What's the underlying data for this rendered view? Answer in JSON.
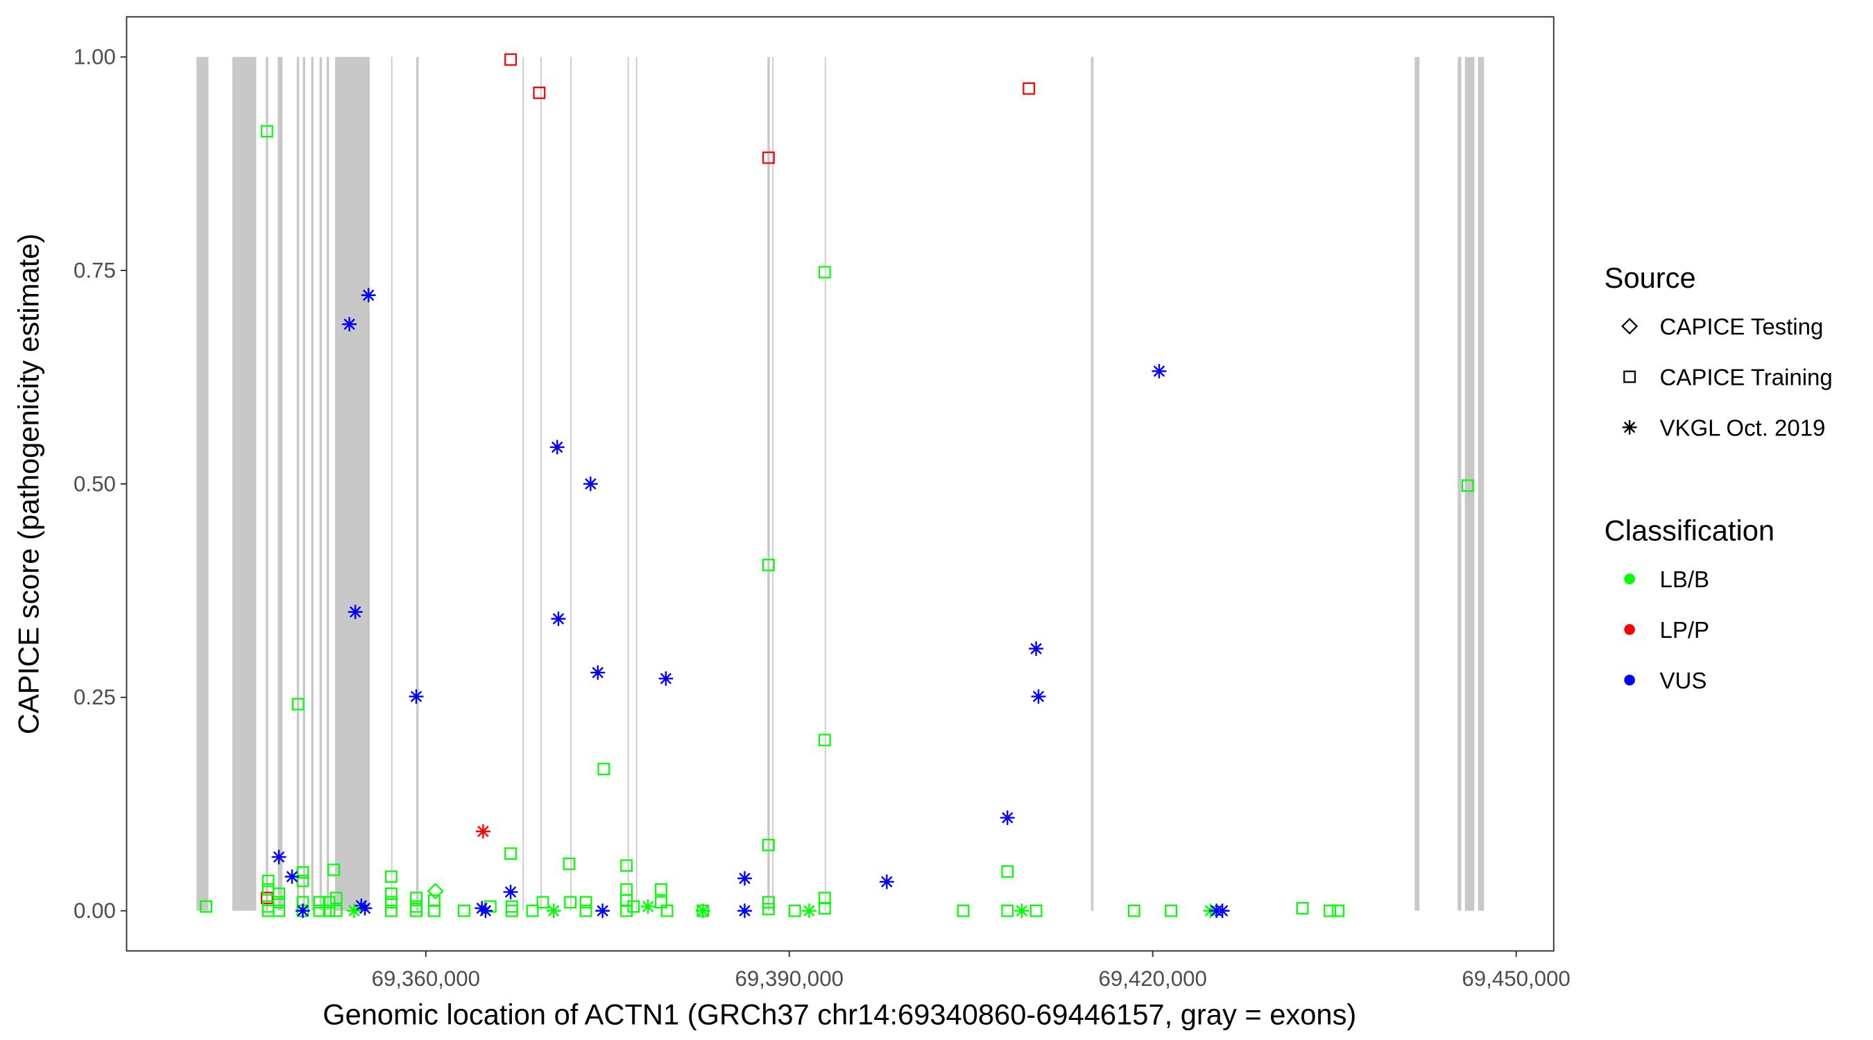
{
  "chart_data": {
    "type": "scatter",
    "title": "",
    "xlabel": "Genomic location of ACTN1 (GRCh37 chr14:69340860-69446157, gray = exons)",
    "ylabel": "CAPICE score (pathogenicity estimate)",
    "xlim": [
      69335300,
      69453100
    ],
    "ylim": [
      -0.047,
      1.047
    ],
    "x_ticks": [
      69360000,
      69390000,
      69420000,
      69450000
    ],
    "x_tick_labels": [
      "69,360,000",
      "69,390,000",
      "69,420,000",
      "69,450,000"
    ],
    "y_ticks": [
      0,
      0.25,
      0.5,
      0.75,
      1.0
    ],
    "y_tick_labels": [
      "0.00",
      "0.25",
      "0.50",
      "0.75",
      "1.00"
    ],
    "grid": false,
    "exon_color": "#c8c8c8",
    "exons": [
      [
        69341073,
        69342058
      ],
      [
        69344030,
        69346000
      ],
      [
        69346790,
        69346990
      ],
      [
        69347776,
        69348170
      ],
      [
        69349350,
        69349550
      ],
      [
        69349846,
        69350044
      ],
      [
        69350536,
        69350733
      ],
      [
        69351226,
        69351423
      ],
      [
        69351818,
        69352015
      ],
      [
        69352508,
        69355367
      ],
      [
        69357141,
        69357240
      ],
      [
        69359211,
        69359408
      ],
      [
        69367985,
        69368084
      ],
      [
        69369464,
        69369562
      ],
      [
        69371928,
        69372027
      ],
      [
        69376660,
        69376760
      ],
      [
        69377350,
        69377450
      ],
      [
        69388195,
        69388390
      ],
      [
        69388590,
        69388687
      ],
      [
        69392926,
        69393024
      ],
      [
        69414910,
        69415110
      ],
      [
        69441625,
        69442020
      ],
      [
        69445170,
        69445470
      ],
      [
        69445765,
        69446555
      ],
      [
        69446850,
        69447340
      ]
    ],
    "legend": {
      "placement": "right",
      "source_title": "Source",
      "sources": [
        {
          "key": "testing",
          "label": "CAPICE Testing",
          "shape": "diamond"
        },
        {
          "key": "training",
          "label": "CAPICE Training",
          "shape": "square"
        },
        {
          "key": "vkgl",
          "label": "VKGL Oct. 2019",
          "shape": "asterisk"
        }
      ],
      "class_title": "Classification",
      "classes": [
        {
          "key": "LB/B",
          "label": "LB/B",
          "color": "#00ff00"
        },
        {
          "key": "LP/P",
          "label": "LP/P",
          "color": "#ff0000"
        },
        {
          "key": "VUS",
          "label": "VUS",
          "color": "#0000ff"
        }
      ]
    },
    "points": [
      [
        69341861,
        0.005,
        "training",
        "LB/B"
      ],
      [
        69346889,
        0.913,
        "training",
        "LB/B"
      ],
      [
        69346889,
        0.015,
        "training",
        "LP/P"
      ],
      [
        69346990,
        0.035,
        "training",
        "LB/B"
      ],
      [
        69346990,
        0.025,
        "training",
        "LB/B"
      ],
      [
        69346990,
        0.005,
        "training",
        "LB/B"
      ],
      [
        69346990,
        0.0,
        "training",
        "LB/B"
      ],
      [
        69347875,
        0.02,
        "training",
        "LB/B"
      ],
      [
        69347875,
        0.01,
        "training",
        "LB/B"
      ],
      [
        69347875,
        0.0,
        "training",
        "LB/B"
      ],
      [
        69349452,
        0.242,
        "training",
        "LB/B"
      ],
      [
        69349846,
        0.045,
        "training",
        "LB/B"
      ],
      [
        69349846,
        0.035,
        "training",
        "LB/B"
      ],
      [
        69349846,
        0.01,
        "training",
        "LB/B"
      ],
      [
        69349846,
        0.0,
        "training",
        "LB/B"
      ],
      [
        69351226,
        0.01,
        "training",
        "LB/B"
      ],
      [
        69351226,
        0.0,
        "training",
        "LB/B"
      ],
      [
        69352015,
        0.01,
        "training",
        "LB/B"
      ],
      [
        69352015,
        0.0,
        "training",
        "LB/B"
      ],
      [
        69352409,
        0.048,
        "training",
        "LB/B"
      ],
      [
        69352606,
        0.015,
        "training",
        "LB/B"
      ],
      [
        69352606,
        0.0,
        "training",
        "LB/B"
      ],
      [
        69357141,
        0.04,
        "training",
        "LB/B"
      ],
      [
        69357141,
        0.02,
        "training",
        "LB/B"
      ],
      [
        69357141,
        0.01,
        "training",
        "LB/B"
      ],
      [
        69357141,
        0.0,
        "training",
        "LB/B"
      ],
      [
        69359211,
        0.015,
        "training",
        "LB/B"
      ],
      [
        69359211,
        0.005,
        "training",
        "LB/B"
      ],
      [
        69359211,
        0.0,
        "training",
        "LB/B"
      ],
      [
        69360690,
        0.012,
        "training",
        "LB/B"
      ],
      [
        69360690,
        0.0,
        "training",
        "LB/B"
      ],
      [
        69363155,
        0.0,
        "training",
        "LB/B"
      ],
      [
        69365323,
        0.005,
        "training",
        "LB/B"
      ],
      [
        69367000,
        0.997,
        "training",
        "LP/P"
      ],
      [
        69367000,
        0.067,
        "training",
        "LB/B"
      ],
      [
        69367098,
        0.005,
        "training",
        "LB/B"
      ],
      [
        69367098,
        0.0,
        "training",
        "LB/B"
      ],
      [
        69369365,
        0.958,
        "training",
        "LP/P"
      ],
      [
        69368800,
        0.0,
        "training",
        "LB/B"
      ],
      [
        69369660,
        0.01,
        "training",
        "LB/B"
      ],
      [
        69371830,
        0.055,
        "training",
        "LB/B"
      ],
      [
        69371928,
        0.01,
        "training",
        "LB/B"
      ],
      [
        69373210,
        0.01,
        "training",
        "LB/B"
      ],
      [
        69373210,
        0.0,
        "training",
        "LB/B"
      ],
      [
        69374690,
        0.166,
        "training",
        "LB/B"
      ],
      [
        69376560,
        0.053,
        "training",
        "LB/B"
      ],
      [
        69376560,
        0.025,
        "training",
        "LB/B"
      ],
      [
        69376560,
        0.012,
        "training",
        "LB/B"
      ],
      [
        69376560,
        0.0,
        "training",
        "LB/B"
      ],
      [
        69377150,
        0.005,
        "training",
        "LB/B"
      ],
      [
        69379420,
        0.025,
        "training",
        "LB/B"
      ],
      [
        69379420,
        0.01,
        "training",
        "LB/B"
      ],
      [
        69379913,
        0.0,
        "training",
        "LB/B"
      ],
      [
        69382870,
        0.0,
        "training",
        "LB/B"
      ],
      [
        69388290,
        0.882,
        "training",
        "LP/P"
      ],
      [
        69388290,
        0.405,
        "training",
        "LB/B"
      ],
      [
        69388290,
        0.077,
        "training",
        "LB/B"
      ],
      [
        69388290,
        0.01,
        "training",
        "LB/B"
      ],
      [
        69388290,
        0.002,
        "training",
        "LB/B"
      ],
      [
        69390460,
        0.0,
        "training",
        "LB/B"
      ],
      [
        69392925,
        0.748,
        "training",
        "LB/B"
      ],
      [
        69392925,
        0.2,
        "training",
        "LB/B"
      ],
      [
        69392925,
        0.015,
        "training",
        "LB/B"
      ],
      [
        69392925,
        0.003,
        "training",
        "LB/B"
      ],
      [
        69404360,
        0.0,
        "training",
        "LB/B"
      ],
      [
        69408010,
        0.046,
        "training",
        "LB/B"
      ],
      [
        69408010,
        0.0,
        "training",
        "LB/B"
      ],
      [
        69409780,
        0.963,
        "training",
        "LP/P"
      ],
      [
        69410375,
        0.0,
        "training",
        "LB/B"
      ],
      [
        69418460,
        0.0,
        "training",
        "LB/B"
      ],
      [
        69421515,
        0.0,
        "training",
        "LB/B"
      ],
      [
        69432360,
        0.003,
        "training",
        "LB/B"
      ],
      [
        69434625,
        0.0,
        "training",
        "LB/B"
      ],
      [
        69435315,
        0.0,
        "training",
        "LB/B"
      ],
      [
        69446000,
        0.498,
        "training",
        "LB/B"
      ],
      [
        69360790,
        0.023,
        "testing",
        "LB/B"
      ],
      [
        69347875,
        0.063,
        "vkgl",
        "VUS"
      ],
      [
        69348960,
        0.04,
        "vkgl",
        "VUS"
      ],
      [
        69349846,
        0.0,
        "vkgl",
        "VUS"
      ],
      [
        69353690,
        0.687,
        "vkgl",
        "VUS"
      ],
      [
        69355270,
        0.721,
        "vkgl",
        "VUS"
      ],
      [
        69354180,
        0.35,
        "vkgl",
        "VUS"
      ],
      [
        69354676,
        0.006,
        "vkgl",
        "VUS"
      ],
      [
        69354972,
        0.003,
        "vkgl",
        "VUS"
      ],
      [
        69354085,
        0.0,
        "vkgl",
        "LB/B"
      ],
      [
        69359211,
        0.251,
        "vkgl",
        "VUS"
      ],
      [
        69364730,
        0.093,
        "vkgl",
        "LP/P"
      ],
      [
        69364633,
        0.003,
        "vkgl",
        "VUS"
      ],
      [
        69364929,
        0.0,
        "vkgl",
        "VUS"
      ],
      [
        69367000,
        0.022,
        "vkgl",
        "VUS"
      ],
      [
        69370845,
        0.543,
        "vkgl",
        "VUS"
      ],
      [
        69370945,
        0.342,
        "vkgl",
        "VUS"
      ],
      [
        69373600,
        0.5,
        "vkgl",
        "VUS"
      ],
      [
        69374195,
        0.279,
        "vkgl",
        "VUS"
      ],
      [
        69374590,
        0.0,
        "vkgl",
        "VUS"
      ],
      [
        69370548,
        0.0,
        "vkgl",
        "LB/B"
      ],
      [
        69378336,
        0.005,
        "vkgl",
        "LB/B"
      ],
      [
        69382870,
        0.0,
        "vkgl",
        "LB/B"
      ],
      [
        69386320,
        0.0,
        "vkgl",
        "VUS"
      ],
      [
        69386320,
        0.038,
        "vkgl",
        "VUS"
      ],
      [
        69391643,
        0.0,
        "vkgl",
        "LB/B"
      ],
      [
        69379815,
        0.272,
        "vkgl",
        "VUS"
      ],
      [
        69398050,
        0.034,
        "vkgl",
        "VUS"
      ],
      [
        69408010,
        0.109,
        "vkgl",
        "VUS"
      ],
      [
        69409190,
        0.0,
        "vkgl",
        "LB/B"
      ],
      [
        69410375,
        0.307,
        "vkgl",
        "VUS"
      ],
      [
        69410570,
        0.251,
        "vkgl",
        "VUS"
      ],
      [
        69420530,
        0.632,
        "vkgl",
        "VUS"
      ],
      [
        69424770,
        0.0,
        "vkgl",
        "LB/B"
      ],
      [
        69425260,
        0.0,
        "vkgl",
        "VUS"
      ],
      [
        69425750,
        0.0,
        "vkgl",
        "VUS"
      ]
    ]
  }
}
